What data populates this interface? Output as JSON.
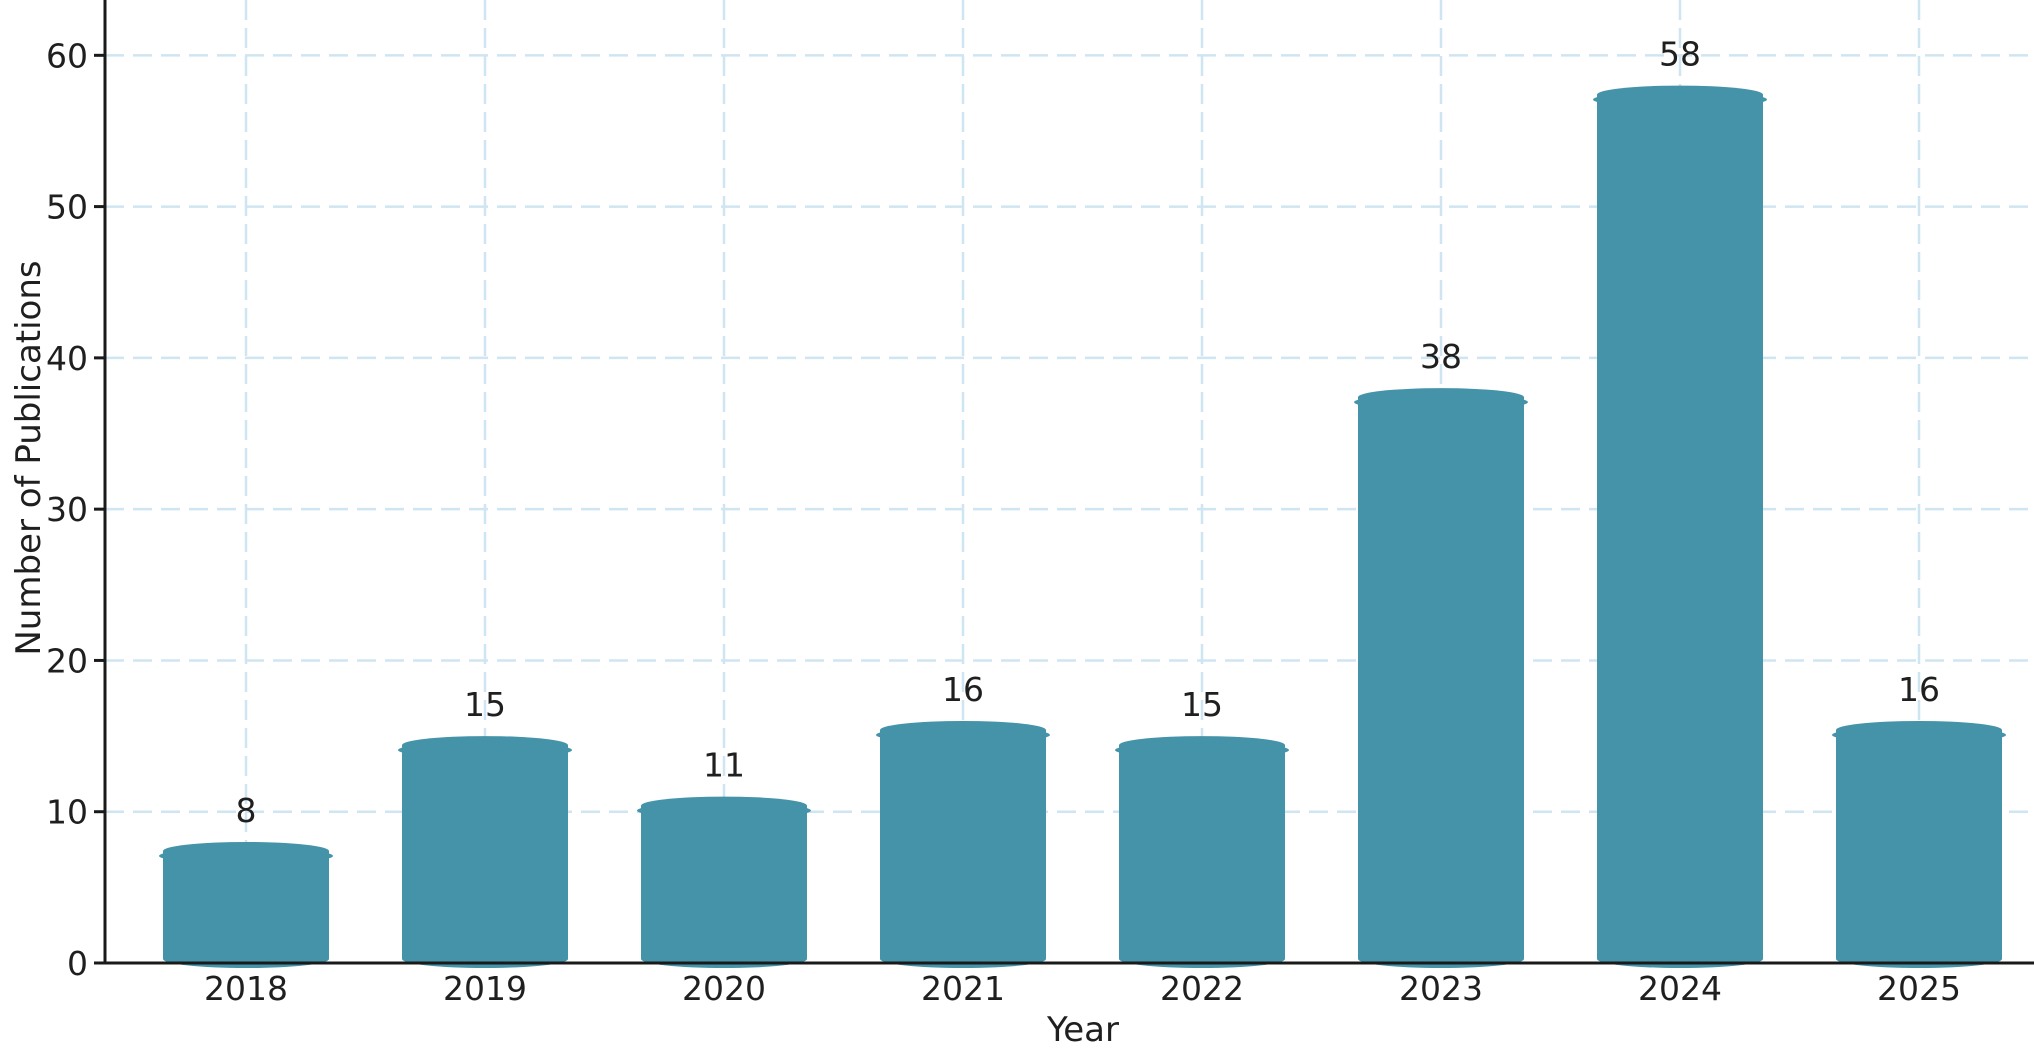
{
  "chart_data": {
    "type": "bar",
    "title": "",
    "xlabel": "Year",
    "ylabel": "Number of Publications",
    "categories": [
      "2018",
      "2019",
      "2020",
      "2021",
      "2022",
      "2023",
      "2024",
      "2025"
    ],
    "values": [
      8,
      15,
      11,
      16,
      15,
      38,
      58,
      16
    ],
    "value_labels_shown": true,
    "yticks": [
      0,
      10,
      20,
      30,
      40,
      50,
      60
    ],
    "ylim": [
      0,
      63.5
    ],
    "grid": {
      "horizontal": true,
      "vertical": true,
      "style": "dashed"
    },
    "legend": "none",
    "bar_shape": "cylinder (domed top and bottom)",
    "colors": {
      "bar": "#4593a9",
      "grid": "#cfe5f1",
      "axis": "#1a1a1a",
      "text": "#1f1f1f",
      "background": "#ffffff"
    }
  }
}
